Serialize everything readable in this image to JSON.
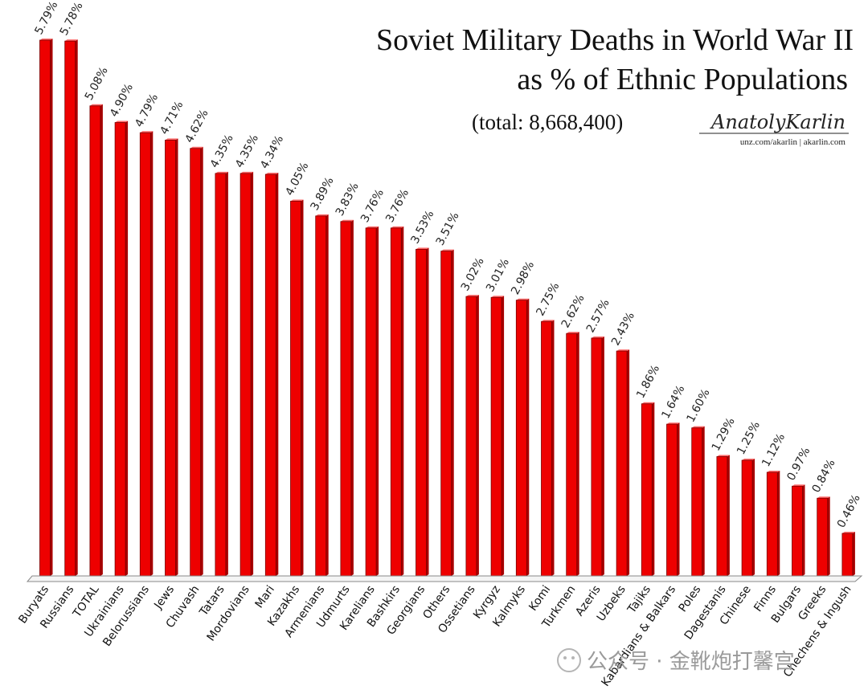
{
  "chart_data": {
    "type": "bar",
    "title": "Soviet Military Deaths in World War II",
    "subtitle": "as % of Ethnic Populations",
    "note": "(total: 8,668,400)",
    "xlabel": "",
    "ylabel": "",
    "ylim": [
      0,
      6
    ],
    "grid": false,
    "bar_color": "#ee0000",
    "categories": [
      "Buryats",
      "Russians",
      "TOTAL",
      "Ukrainians",
      "Belorussians",
      "Jews",
      "Chuvash",
      "Tatars",
      "Mordovians",
      "Mari",
      "Kazakhs",
      "Armenians",
      "Udmurts",
      "Karelians",
      "Bashkirs",
      "Georgians",
      "Others",
      "Ossetians",
      "Kyrgyz",
      "Kalmyks",
      "Komi",
      "Turkmen",
      "Azeris",
      "Uzbeks",
      "Tajiks",
      "Kabardians & Balkars",
      "Poles",
      "Dagestanis",
      "Chinese",
      "Finns",
      "Bulgars",
      "Greeks",
      "Chechens & Ingush"
    ],
    "values": [
      5.79,
      5.78,
      5.08,
      4.9,
      4.79,
      4.71,
      4.62,
      4.35,
      4.35,
      4.34,
      4.05,
      3.89,
      3.83,
      3.76,
      3.76,
      3.53,
      3.51,
      3.02,
      3.01,
      2.98,
      2.75,
      2.62,
      2.57,
      2.43,
      1.86,
      1.64,
      1.6,
      1.29,
      1.25,
      1.12,
      0.97,
      0.84,
      0.46
    ],
    "data_labels": [
      "5.79%",
      "5.78%",
      "5.08%",
      "4.90%",
      "4.79%",
      "4.71%",
      "4.62%",
      "4.35%",
      "4.35%",
      "4.34%",
      "4.05%",
      "3.89%",
      "3.83%",
      "3.76%",
      "3.76%",
      "3.53%",
      "3.51%",
      "3.02%",
      "3.01%",
      "2.98%",
      "2.75%",
      "2.62%",
      "2.57%",
      "2.43%",
      "1.86%",
      "1.64%",
      "1.60%",
      "1.29%",
      "1.25%",
      "1.12%",
      "0.97%",
      "0.84%",
      "0.46%"
    ]
  },
  "branding": {
    "signature": "AnatolyKarlin",
    "site": "unz.com/akarlin | akarlin.com"
  },
  "watermark": {
    "text": "公众号 · 金靴炮打馨宫"
  }
}
